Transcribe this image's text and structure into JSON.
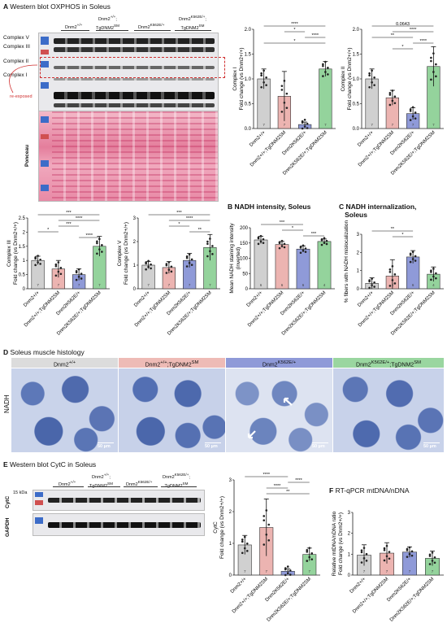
{
  "panelA": {
    "letter": "A",
    "title": "Western blot OXPHOS in Soleus",
    "groups": [
      "Dnm2+/+",
      "Dnm2+/+;TgDNM2SM",
      "Dnm2K562E/+",
      "Dnm2K562E/+;TgDNM2SM"
    ],
    "complexes": [
      "Complex V",
      "Complex III",
      "Complex II",
      "Complex I"
    ],
    "reexposed": "re-exposed",
    "ponceau": "Ponceau"
  },
  "panelB": {
    "letter": "B",
    "title": "NADH intensity, Soleus"
  },
  "panelC": {
    "letter": "C",
    "title": "NADH internalization,",
    "title2": "Soleus"
  },
  "panelD": {
    "letter": "D",
    "title": "Soleus muscle histology",
    "rowlabel": "NADH",
    "scale": "50 µm"
  },
  "panelE": {
    "letter": "E",
    "title": "Western blot CytC in Soleus",
    "kda": "15 kDa",
    "cytc": "CytC",
    "gapdh": "GAPDH"
  },
  "panelF": {
    "letter": "F",
    "title": "RT-qPCR mtDNA/nDNA"
  },
  "colors": [
    "#d0d0d0",
    "#ecb4b1",
    "#8f9ad8",
    "#94d39c"
  ],
  "xlabels": [
    "Dnm2+/+",
    "Dnm2+/+;TgDNM2SM",
    "Dnm2K562E/+",
    "Dnm2K562E/+;TgDNM2SM"
  ],
  "chart_data": [
    {
      "id": "complexI",
      "type": "bar",
      "ylabel": "Complex I",
      "ylabel2": "Fold change (vs Dnm2+/+)",
      "ylim": [
        0,
        2.0
      ],
      "ticks": [
        0,
        0.5,
        1.0,
        1.5,
        2.0
      ],
      "tickLabels": [
        "0.0",
        "0.5",
        "1.0",
        "1.5",
        "2.0"
      ],
      "values": [
        1.0,
        0.65,
        0.08,
        1.2
      ],
      "errors": [
        0.2,
        0.5,
        0.05,
        0.15
      ],
      "n": [
        "7",
        "7",
        "7",
        "7"
      ],
      "sig": [
        [
          "****",
          0,
          3
        ],
        [
          "*",
          1,
          2
        ],
        [
          "****",
          2,
          3
        ],
        [
          "*",
          0,
          3
        ]
      ]
    },
    {
      "id": "complexII",
      "type": "bar",
      "ylabel": "Complex II",
      "ylabel2": "Fold change (vs Dnm2+/+)",
      "ylim": [
        0,
        2.0
      ],
      "ticks": [
        0,
        0.5,
        1.0,
        1.5,
        2.0
      ],
      "tickLabels": [
        "0.0",
        "0.5",
        "1.0",
        "1.5",
        "2.0"
      ],
      "values": [
        1.0,
        0.62,
        0.3,
        1.25
      ],
      "errors": [
        0.2,
        0.15,
        0.12,
        0.4
      ],
      "n": [
        "7",
        "7",
        "7",
        "7"
      ],
      "sig": [
        [
          "0.0643",
          0,
          3
        ],
        [
          "****",
          1,
          3
        ],
        [
          "**",
          0,
          2
        ],
        [
          "****",
          2,
          3
        ],
        [
          "*",
          1,
          2
        ]
      ]
    },
    {
      "id": "complexIII",
      "type": "bar",
      "ylabel": "Complex III",
      "ylabel2": "Fold change (vs Dnm2+/+)",
      "ylim": [
        0,
        2.5
      ],
      "ticks": [
        0,
        0.5,
        1.0,
        1.5,
        2.0,
        2.5
      ],
      "tickLabels": [
        "0",
        "0.5",
        "1",
        "1.5",
        "2",
        "2.5"
      ],
      "values": [
        1.0,
        0.7,
        0.5,
        1.5
      ],
      "errors": [
        0.15,
        0.3,
        0.2,
        0.35
      ],
      "n": [
        "7",
        "7",
        "7",
        "7"
      ],
      "sig": [
        [
          "***",
          0,
          3
        ],
        [
          "****",
          1,
          3
        ],
        [
          "***",
          1,
          2
        ],
        [
          "*",
          0,
          1
        ],
        [
          "****",
          2,
          3
        ]
      ]
    },
    {
      "id": "complexV",
      "type": "bar",
      "ylabel": "Complex V",
      "ylabel2": "Fold change (vs Dnm2+/+)",
      "ylim": [
        0,
        3
      ],
      "ticks": [
        0,
        1,
        2,
        3
      ],
      "tickLabels": [
        "0",
        "1",
        "2",
        "3"
      ],
      "values": [
        1.0,
        0.9,
        1.2,
        1.75
      ],
      "errors": [
        0.15,
        0.25,
        0.3,
        0.55
      ],
      "n": [
        "7",
        "7",
        "7",
        "7"
      ],
      "sig": [
        [
          "***",
          0,
          3
        ],
        [
          "****",
          1,
          3
        ],
        [
          "*",
          1,
          2
        ],
        [
          "**",
          2,
          3
        ]
      ]
    },
    {
      "id": "nadhIntensity",
      "type": "bar",
      "ylabel": "Mean NADH staining intensity",
      "ylabel2": "(inverted)",
      "ylim": [
        0,
        200
      ],
      "ticks": [
        0,
        50,
        100,
        150,
        200
      ],
      "tickLabels": [
        "0",
        "50",
        "100",
        "150",
        "200"
      ],
      "values": [
        160,
        145,
        130,
        155
      ],
      "errors": [
        12,
        10,
        10,
        8
      ],
      "n": [
        "6",
        "6",
        "6",
        "4"
      ],
      "sig": [
        [
          "***",
          0,
          2
        ],
        [
          "*",
          1,
          2
        ],
        [
          "***",
          2,
          3
        ]
      ]
    },
    {
      "id": "nadhInternal",
      "type": "bar",
      "ylabel": "% fibers with NADH mislocalization",
      "ylabel2": "",
      "ylim": [
        0,
        3
      ],
      "ticks": [
        0,
        1,
        2,
        3
      ],
      "tickLabels": [
        "0",
        "1",
        "2",
        "3"
      ],
      "values": [
        0.3,
        0.7,
        1.75,
        0.8
      ],
      "errors": [
        0.3,
        0.9,
        0.35,
        0.4
      ],
      "n": [
        "3",
        "3",
        "6",
        "4"
      ],
      "sig": [
        [
          "**",
          0,
          2
        ],
        [
          "*",
          1,
          2
        ]
      ]
    },
    {
      "id": "cytc",
      "type": "bar",
      "ylabel": "CytC",
      "ylabel2": "Fold change (vs Dnm2+/+)",
      "ylim": [
        0,
        3
      ],
      "ticks": [
        0,
        1,
        2,
        3
      ],
      "tickLabels": [
        "0",
        "1",
        "2",
        "3"
      ],
      "values": [
        0.95,
        1.5,
        0.12,
        0.65
      ],
      "errors": [
        0.3,
        0.9,
        0.08,
        0.2
      ],
      "n": [
        "7",
        "7",
        "7",
        "7"
      ],
      "sig": [
        [
          "****",
          0,
          2
        ],
        [
          "****",
          2,
          3
        ],
        [
          "****",
          1,
          2
        ],
        [
          "**",
          1,
          3
        ]
      ]
    },
    {
      "id": "mtdna",
      "type": "bar",
      "ylabel": "Relative mtDNA/nDNA ratio",
      "ylabel2": "Fold change (vs Dnm2+/+)",
      "ylim": [
        0,
        3
      ],
      "ticks": [
        0,
        1,
        2,
        3
      ],
      "tickLabels": [
        "0",
        "1",
        "2",
        "3"
      ],
      "values": [
        0.95,
        1.05,
        1.1,
        0.8
      ],
      "errors": [
        0.5,
        0.5,
        0.25,
        0.35
      ],
      "n": [
        "7",
        "7",
        "7",
        "7"
      ],
      "sig": []
    }
  ]
}
